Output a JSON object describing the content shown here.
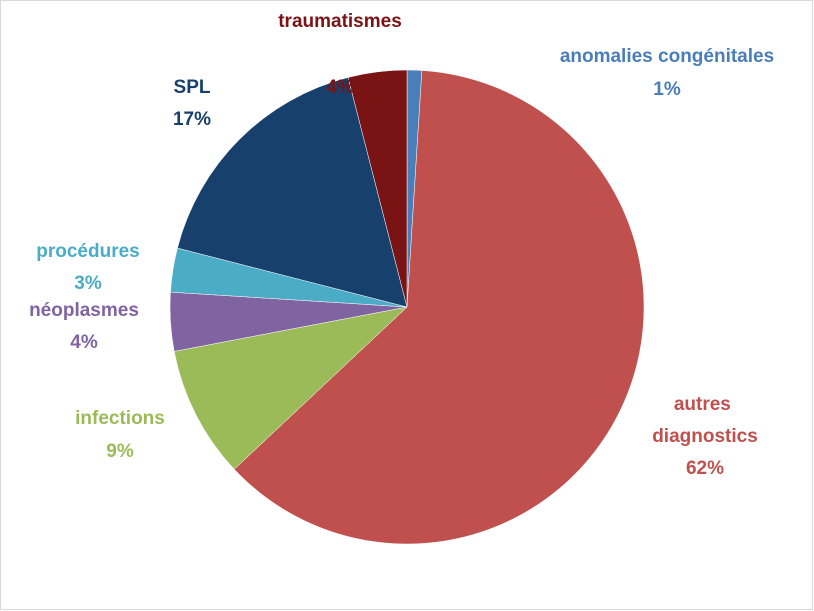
{
  "chart_data": {
    "type": "pie",
    "categories": [
      "anomalies congénitales",
      "autres diagnostics",
      "infections",
      "néoplasmes",
      "procédures",
      "SPL",
      "traumatismes"
    ],
    "values": [
      1,
      62,
      9,
      4,
      3,
      17,
      4
    ],
    "value_labels": [
      "1%",
      "62%",
      "9%",
      "4%",
      "3%",
      "17%",
      "4%"
    ],
    "colors": [
      "#4a7ebb",
      "#c0504d",
      "#9bbb59",
      "#8064a2",
      "#4bacc6",
      "#17406d",
      "#7a1313"
    ]
  }
}
